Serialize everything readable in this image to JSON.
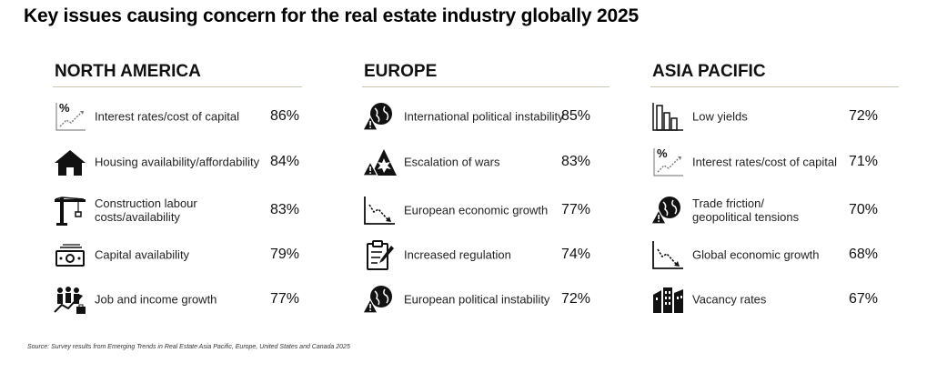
{
  "title": "Key issues causing concern for the real estate industry globally 2025",
  "source": "Source: Survey results from Emerging Trends in Real Estate Asia Pacific, Europe, United States and Canada 2025",
  "chart_data": {
    "type": "table",
    "title": "Key issues causing concern for the real estate industry globally 2025",
    "unit": "%",
    "regions": [
      {
        "name": "NORTH AMERICA",
        "items": [
          {
            "label": "Interest rates/cost of capital",
            "value": 86,
            "display": "86%",
            "icon": "interest-rate-icon"
          },
          {
            "label": "Housing availability/affordability",
            "value": 84,
            "display": "84%",
            "icon": "house-icon"
          },
          {
            "label": "Construction labour\ncosts/availability",
            "value": 83,
            "display": "83%",
            "icon": "crane-icon"
          },
          {
            "label": "Capital availability",
            "value": 79,
            "display": "79%",
            "icon": "cash-icon"
          },
          {
            "label": "Job and income growth",
            "value": 77,
            "display": "77%",
            "icon": "people-growth-icon"
          }
        ]
      },
      {
        "name": "EUROPE",
        "items": [
          {
            "label": "International political instability",
            "value": 85,
            "display": "85%",
            "icon": "globe-warning-icon"
          },
          {
            "label": "Escalation of wars",
            "value": 83,
            "display": "83%",
            "icon": "explosion-warning-icon"
          },
          {
            "label": "European economic growth",
            "value": 77,
            "display": "77%",
            "icon": "declining-chart-icon"
          },
          {
            "label": "Increased regulation",
            "value": 74,
            "display": "74%",
            "icon": "clipboard-icon"
          },
          {
            "label": "European political instability",
            "value": 72,
            "display": "72%",
            "icon": "globe-warning-icon"
          }
        ]
      },
      {
        "name": "ASIA PACIFIC",
        "items": [
          {
            "label": "Low yields",
            "value": 72,
            "display": "72%",
            "icon": "falling-bars-icon"
          },
          {
            "label": "Interest rates/cost of capital",
            "value": 71,
            "display": "71%",
            "icon": "interest-rate-icon"
          },
          {
            "label": "Trade friction/\ngeopolitical tensions",
            "value": 70,
            "display": "70%",
            "icon": "globe-warning-icon"
          },
          {
            "label": "Global economic growth",
            "value": 68,
            "display": "68%",
            "icon": "declining-chart-icon"
          },
          {
            "label": "Vacancy rates",
            "value": 67,
            "display": "67%",
            "icon": "buildings-icon"
          }
        ]
      }
    ]
  }
}
